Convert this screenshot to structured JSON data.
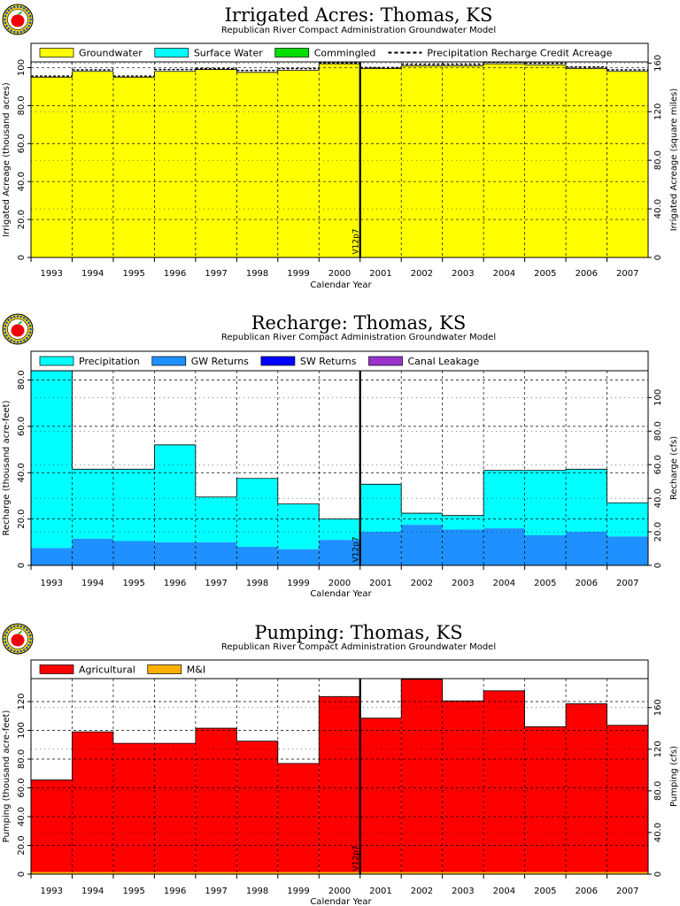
{
  "page": {
    "logo_name": "apple-logo",
    "colors": {
      "groundwater": "#ffff00",
      "surface_water": "#00ffff",
      "commingled": "#00dd00",
      "precipitation": "#00ffff",
      "gw_returns": "#1e90ff",
      "sw_returns": "#0000ff",
      "canal_leakage": "#9933cc",
      "agricultural": "#ff0000",
      "mi": "#ffb000"
    }
  },
  "chart_data": [
    {
      "type": "bar",
      "id": "acres",
      "title": "Irrigated Acres: Thomas, KS",
      "subtitle": "Republican River Compact Administration Groundwater Model",
      "xlabel": "Calendar Year",
      "ylabel": "Irrigated Acreage (thousand acres)",
      "y2label": "Irrigated Acreage (square miles)",
      "categories": [
        "1993",
        "1994",
        "1995",
        "1996",
        "1997",
        "1998",
        "1999",
        "2000",
        "2001",
        "2002",
        "2003",
        "2004",
        "2005",
        "2006",
        "2007"
      ],
      "ylim": [
        0,
        103
      ],
      "yticks": [
        0,
        20,
        40,
        60,
        80,
        100
      ],
      "ytick_labels": [
        "0",
        "20.0",
        "40.0",
        "60.0",
        "80.0",
        "100"
      ],
      "y2_factor": 1.5625,
      "y2ticks": [
        0,
        40,
        80,
        120,
        160
      ],
      "y2tick_labels": [
        "0",
        "40.0",
        "80.0",
        "120",
        "160"
      ],
      "grid": true,
      "legend_position": "top",
      "marker_year": "2000.5",
      "marker_label": "V12p7",
      "legend": [
        {
          "label": "Groundwater",
          "kind": "box",
          "color_key": "groundwater"
        },
        {
          "label": "Surface Water",
          "kind": "box",
          "color_key": "surface_water"
        },
        {
          "label": "Commingled",
          "kind": "box",
          "color_key": "commingled"
        },
        {
          "label": "Precipitation Recharge Credit Acreage",
          "kind": "dash"
        }
      ],
      "series": [
        {
          "name": "Groundwater",
          "color_key": "groundwater",
          "values": [
            95,
            98,
            95,
            98,
            99,
            97.5,
            98.5,
            102,
            99.5,
            101,
            101,
            102,
            101.5,
            99.5,
            98
          ]
        },
        {
          "name": "Surface Water",
          "color_key": "surface_water",
          "values": [
            0,
            0,
            0,
            0,
            0,
            0,
            0,
            0,
            0,
            0,
            0,
            0,
            0,
            0,
            0
          ]
        },
        {
          "name": "Commingled",
          "color_key": "commingled",
          "values": [
            0,
            0,
            0,
            0,
            0,
            0,
            0,
            0,
            0,
            0,
            0,
            0,
            0,
            0,
            0
          ]
        }
      ],
      "line_series": {
        "name": "Precipitation Recharge Credit Acreage",
        "values": [
          95.5,
          98.8,
          95.5,
          99,
          99.5,
          98.5,
          99.5,
          102.5,
          100,
          101.8,
          101.8,
          102.8,
          102.3,
          100.3,
          98.8
        ]
      }
    },
    {
      "type": "bar",
      "id": "recharge",
      "title": "Recharge: Thomas, KS",
      "subtitle": "Republican River Compact Administration Groundwater Model",
      "xlabel": "Calendar Year",
      "ylabel": "Recharge (thousand acre-feet)",
      "y2label": "Recharge (cfs)",
      "categories": [
        "1993",
        "1994",
        "1995",
        "1996",
        "1997",
        "1998",
        "1999",
        "2000",
        "2001",
        "2002",
        "2003",
        "2004",
        "2005",
        "2006",
        "2007"
      ],
      "ylim": [
        0,
        84
      ],
      "yticks": [
        0,
        20,
        40,
        60,
        80
      ],
      "ytick_labels": [
        "0",
        "20.0",
        "40.0",
        "60.0",
        "80.0"
      ],
      "y2_factor": 1.381,
      "y2ticks": [
        0,
        20,
        40,
        60,
        80,
        100
      ],
      "y2tick_labels": [
        "0",
        "20.0",
        "40.0",
        "60.0",
        "80.0",
        "100"
      ],
      "grid": true,
      "legend_position": "top",
      "marker_year": "2000.5",
      "marker_label": "V12p7",
      "legend": [
        {
          "label": "Precipitation",
          "kind": "box",
          "color_key": "precipitation"
        },
        {
          "label": "GW Returns",
          "kind": "box",
          "color_key": "gw_returns"
        },
        {
          "label": "SW Returns",
          "kind": "box",
          "color_key": "sw_returns"
        },
        {
          "label": "Canal Leakage",
          "kind": "box",
          "color_key": "canal_leakage"
        }
      ],
      "series": [
        {
          "name": "GW Returns",
          "color_key": "gw_returns",
          "values": [
            7.5,
            11.5,
            10.5,
            10,
            10,
            8,
            7,
            11,
            14.5,
            17.5,
            15.5,
            16,
            13,
            14.5,
            12.5
          ]
        },
        {
          "name": "Precipitation",
          "color_key": "precipitation",
          "values": [
            76.5,
            30,
            31,
            42,
            19.5,
            29.5,
            19.5,
            9,
            20.5,
            5,
            6,
            25,
            28,
            27,
            14.5
          ]
        },
        {
          "name": "SW Returns",
          "color_key": "sw_returns",
          "values": [
            0,
            0,
            0,
            0,
            0,
            0,
            0,
            0,
            0,
            0,
            0,
            0,
            0,
            0,
            0
          ]
        },
        {
          "name": "Canal Leakage",
          "color_key": "canal_leakage",
          "values": [
            0,
            0,
            0,
            0,
            0,
            0,
            0,
            0,
            0,
            0,
            0,
            0,
            0,
            0,
            0
          ]
        }
      ]
    },
    {
      "type": "bar",
      "id": "pumping",
      "title": "Pumping: Thomas, KS",
      "subtitle": "Republican River Compact Administration Groundwater Model",
      "xlabel": "Calendar Year",
      "ylabel": "Pumping (thousand acre-feet)",
      "y2label": "Pumping (cfs)",
      "categories": [
        "1993",
        "1994",
        "1995",
        "1996",
        "1997",
        "1998",
        "1999",
        "2000",
        "2001",
        "2002",
        "2003",
        "2004",
        "2005",
        "2006",
        "2007"
      ],
      "ylim": [
        0,
        136
      ],
      "yticks": [
        0,
        20,
        40,
        60,
        80,
        100,
        120
      ],
      "ytick_labels": [
        "0",
        "20.0",
        "40.0",
        "60.0",
        "80.0",
        "100",
        "120"
      ],
      "y2_factor": 1.381,
      "y2ticks": [
        0,
        40,
        80,
        120,
        160
      ],
      "y2tick_labels": [
        "0",
        "40.0",
        "80.0",
        "120",
        "160"
      ],
      "grid": true,
      "legend_position": "top",
      "marker_year": "2000.5",
      "marker_label": "V12p7",
      "legend": [
        {
          "label": "Agricultural",
          "kind": "box",
          "color_key": "agricultural"
        },
        {
          "label": "M&I",
          "kind": "box",
          "color_key": "mi"
        }
      ],
      "series": [
        {
          "name": "M&I",
          "color_key": "mi",
          "values": [
            1.5,
            1.5,
            1.5,
            1.5,
            1.5,
            1.5,
            1.5,
            1.5,
            1.5,
            1.5,
            1.5,
            1.5,
            1.5,
            1.5,
            1.5
          ]
        },
        {
          "name": "Agricultural",
          "color_key": "agricultural",
          "values": [
            64,
            97.5,
            89.5,
            89.5,
            100,
            91,
            75.5,
            122,
            107,
            134,
            119,
            126,
            101,
            117,
            102
          ]
        }
      ]
    }
  ]
}
